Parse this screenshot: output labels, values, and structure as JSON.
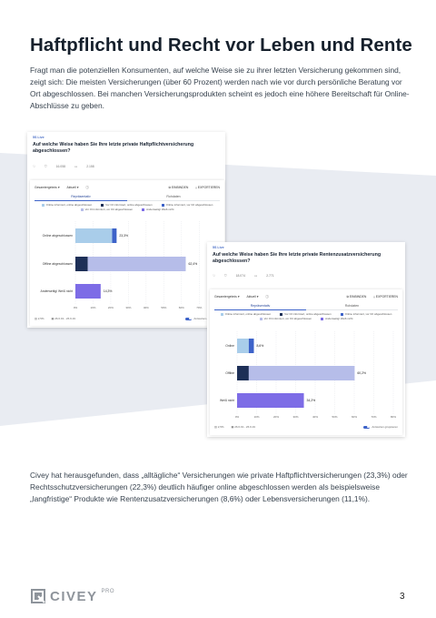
{
  "page": {
    "title": "Haftpflicht und Recht vor Leben und Rente",
    "intro": "Fragt man die potenziellen Konsumenten, auf welche Weise sie zu ihrer letzten Versicherung gekommen sind, zeigt sich: Die meisten Versicherungen (über 60 Prozent) werden nach wie vor durch persönliche Beratung vor Ort abgeschlossen. Bei manchen Versicherungsprodukten scheint es jedoch eine höhere Bereitschaft für Online-Abschlüsse zu geben.",
    "outro": "Civey hat herausgefunden, dass „alltägliche“ Versicherungen wie private Haftpflichtversicherungen (23,3%) oder Rechtsschutzversicherungen (22,3%) deutlich häufiger online abgeschlossen werden als beispielsweise „langfristige“ Produkte wie Rentenzusatzversicherungen (8,6%) oder Lebensversicherungen (11,1%).",
    "page_number": "3"
  },
  "logo": {
    "text": "CIVEY",
    "pro": "PRO",
    "icon": "civey-logo-icon"
  },
  "colors": {
    "online_online": "#a9cdea",
    "online_ort": "#3d63c9",
    "ort_online": "#1d2f57",
    "ort_ort": "#b6bde9",
    "andere": "#7d6ce6"
  },
  "legend": [
    {
      "label": "Online informiert, online abgeschlossen",
      "color": "#a9cdea"
    },
    {
      "label": "Vor Ort informiert, online abgeschlossen",
      "color": "#1d2f57"
    },
    {
      "label": "Online informiert, vor Ort abgeschlossen",
      "color": "#3d63c9"
    },
    {
      "label": "Vor Ort informiert, vor Ort abgeschlossen",
      "color": "#b6bde9"
    },
    {
      "label": "Anderweitig/ Weiß nicht",
      "color": "#7d6ce6"
    }
  ],
  "card1": {
    "tag": "5S Live",
    "question": "Auf welche Weise haben Sie Ihre letzte private Haftpflichtversicherung abgeschlossen?",
    "votes": "16.058",
    "comments": "2.158",
    "dropdown_1": "Gesamtergebnis",
    "dropdown_2": "Aktuell",
    "compare_label": "EINBINDEN",
    "export_label": "EXPORTIEREN",
    "tab_1": "Repräsentativ",
    "tab_2": "Rohdaten",
    "footer_error": "2,5%",
    "footer_period": "26.6.19 - 26.9.19",
    "footer_toggle": "Antworten gruppieren"
  },
  "card2": {
    "tag": "5S Live",
    "question": "Auf welche Weise haben Sie Ihre letzte private Rentenzusatzversicherung abgeschlossen?",
    "votes": "18.074",
    "comments": "2.771",
    "dropdown_1": "Gesamtergebnis",
    "dropdown_2": "Aktuell",
    "compare_label": "EINBINDEN",
    "export_label": "EXPORTIEREN",
    "tab_1": "Repräsentativ",
    "tab_2": "Rohdaten",
    "footer_error": "2,5%",
    "footer_period": "26.6.19 - 26.9.19",
    "footer_toggle": "Antworten gruppieren"
  },
  "chart_data": [
    {
      "type": "bar",
      "orientation": "horizontal-stacked",
      "title": "Auf welche Weise haben Sie Ihre letzte private Haftpflichtversicherung abgeschlossen?",
      "categories": [
        "Online abgeschlossen",
        "Offline abgeschlossen",
        "Anderweitig/ Weiß nicht"
      ],
      "value_labels": [
        "23,3%",
        "62,4%",
        "14,3%"
      ],
      "segments": [
        [
          {
            "color": "#a9cdea",
            "value": 20.8
          },
          {
            "color": "#3d63c9",
            "value": 2.5
          }
        ],
        [
          {
            "color": "#1d2f57",
            "value": 7.0
          },
          {
            "color": "#b6bde9",
            "value": 55.4
          }
        ],
        [
          {
            "color": "#7d6ce6",
            "value": 14.3
          }
        ]
      ],
      "xlim": [
        0,
        75
      ],
      "xticks": [
        "0%",
        "10%",
        "20%",
        "30%",
        "40%",
        "50%",
        "60%",
        "70%"
      ]
    },
    {
      "type": "bar",
      "orientation": "horizontal-stacked",
      "title": "Auf welche Weise haben Sie Ihre letzte private Rentenzusatzversicherung abgeschlossen?",
      "categories": [
        "Online",
        "Offline",
        "Weiß nicht"
      ],
      "value_labels": [
        "8,6%",
        "60,2%",
        "34,2%"
      ],
      "segments": [
        [
          {
            "color": "#a9cdea",
            "value": 6.0
          },
          {
            "color": "#3d63c9",
            "value": 2.6
          }
        ],
        [
          {
            "color": "#1d2f57",
            "value": 6.0
          },
          {
            "color": "#b6bde9",
            "value": 54.2
          }
        ],
        [
          {
            "color": "#7d6ce6",
            "value": 34.2
          }
        ]
      ],
      "xlim": [
        0,
        80
      ],
      "xticks": [
        "0%",
        "10%",
        "20%",
        "30%",
        "40%",
        "50%",
        "60%",
        "70%",
        "80%"
      ]
    }
  ]
}
